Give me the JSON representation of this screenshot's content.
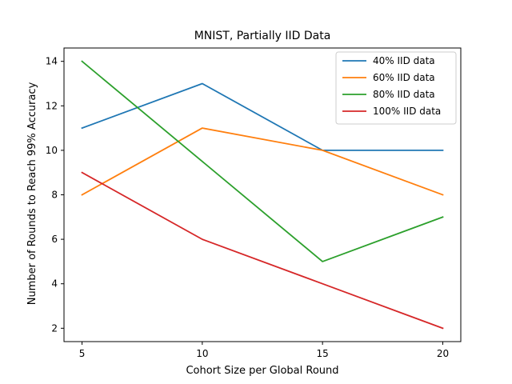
{
  "chart_data": {
    "type": "line",
    "title": "MNIST, Partially IID Data",
    "xlabel": "Cohort Size per Global Round",
    "ylabel": "Number of Rounds to Reach 99% Accuracy",
    "x": [
      5,
      10,
      15,
      20
    ],
    "xticks": [
      5,
      10,
      15,
      20
    ],
    "yticks": [
      2,
      4,
      6,
      8,
      10,
      12,
      14
    ],
    "xlim": [
      4.25,
      20.75
    ],
    "ylim": [
      1.4,
      14.6
    ],
    "grid": false,
    "legend_position": "top-right",
    "series": [
      {
        "name": "40% IID data",
        "values": [
          11,
          13,
          10,
          10
        ],
        "color": "#1f77b4"
      },
      {
        "name": "60% IID data",
        "values": [
          8,
          11,
          10,
          8
        ],
        "color": "#ff7f0e"
      },
      {
        "name": "80% IID data",
        "values": [
          14,
          9.5,
          5,
          7
        ],
        "color": "#2ca02c"
      },
      {
        "name": "100% IID data",
        "values": [
          9,
          6,
          4,
          2
        ],
        "color": "#d62728"
      }
    ]
  }
}
